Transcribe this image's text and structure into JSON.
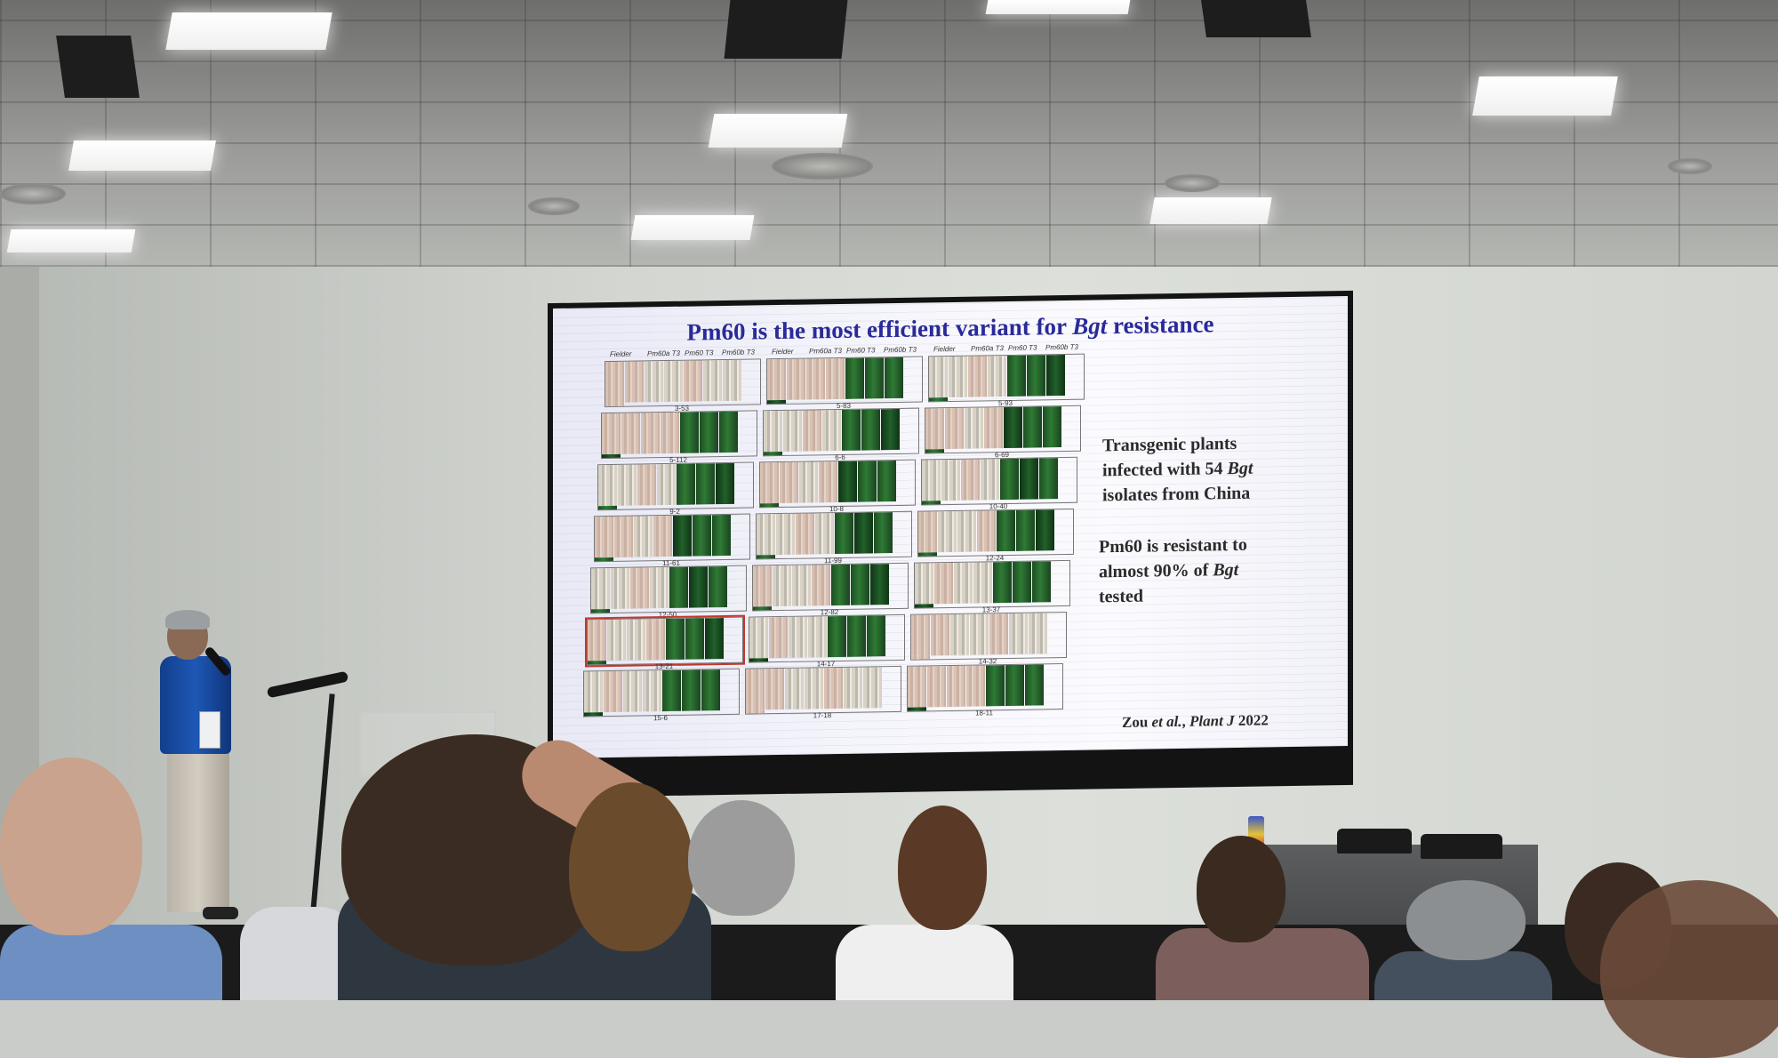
{
  "slide": {
    "title_main": "Pm60 is the most efficient variant for ",
    "title_italic": "Bgt",
    "title_end": " resistance",
    "column_headers": [
      "Fielder",
      "Pm60a T3",
      "Pm60 T3",
      "Pm60b T3"
    ],
    "panel_labels": [
      [
        "3-53",
        "5-83",
        "5-93"
      ],
      [
        "5-112",
        "6-6",
        "6-69"
      ],
      [
        "9-2",
        "10-8",
        "10-40"
      ],
      [
        "11-61",
        "11-99",
        "12-24"
      ],
      [
        "12-50",
        "12-82",
        "13-37"
      ],
      [
        "13-21",
        "14-17",
        "14-32"
      ],
      [
        "15-6",
        "17-18",
        "18-11"
      ]
    ],
    "side_text_1": {
      "line1": "Transgenic plants",
      "line2_pre": "infected with 54 ",
      "line2_italic": "Bgt",
      "line3": "isolates from China"
    },
    "side_text_2": {
      "line1": "Pm60 is resistant to",
      "line2_pre": "almost 90% of ",
      "line2_italic": "Bgt",
      "line3": "tested"
    },
    "citation": {
      "pre": "Zou ",
      "italic1": "et al.",
      "mid": ", ",
      "italic2": "Plant J",
      "post": " 2022"
    }
  },
  "colors": {
    "title": "#2a2a9a",
    "slide_background": "#f4f4fb",
    "body_text": "#2b2b2b",
    "leaf_green": "#2f7a35",
    "leaf_infected": "#d9c2b4",
    "speaker_shirt": "#1d58b5"
  }
}
